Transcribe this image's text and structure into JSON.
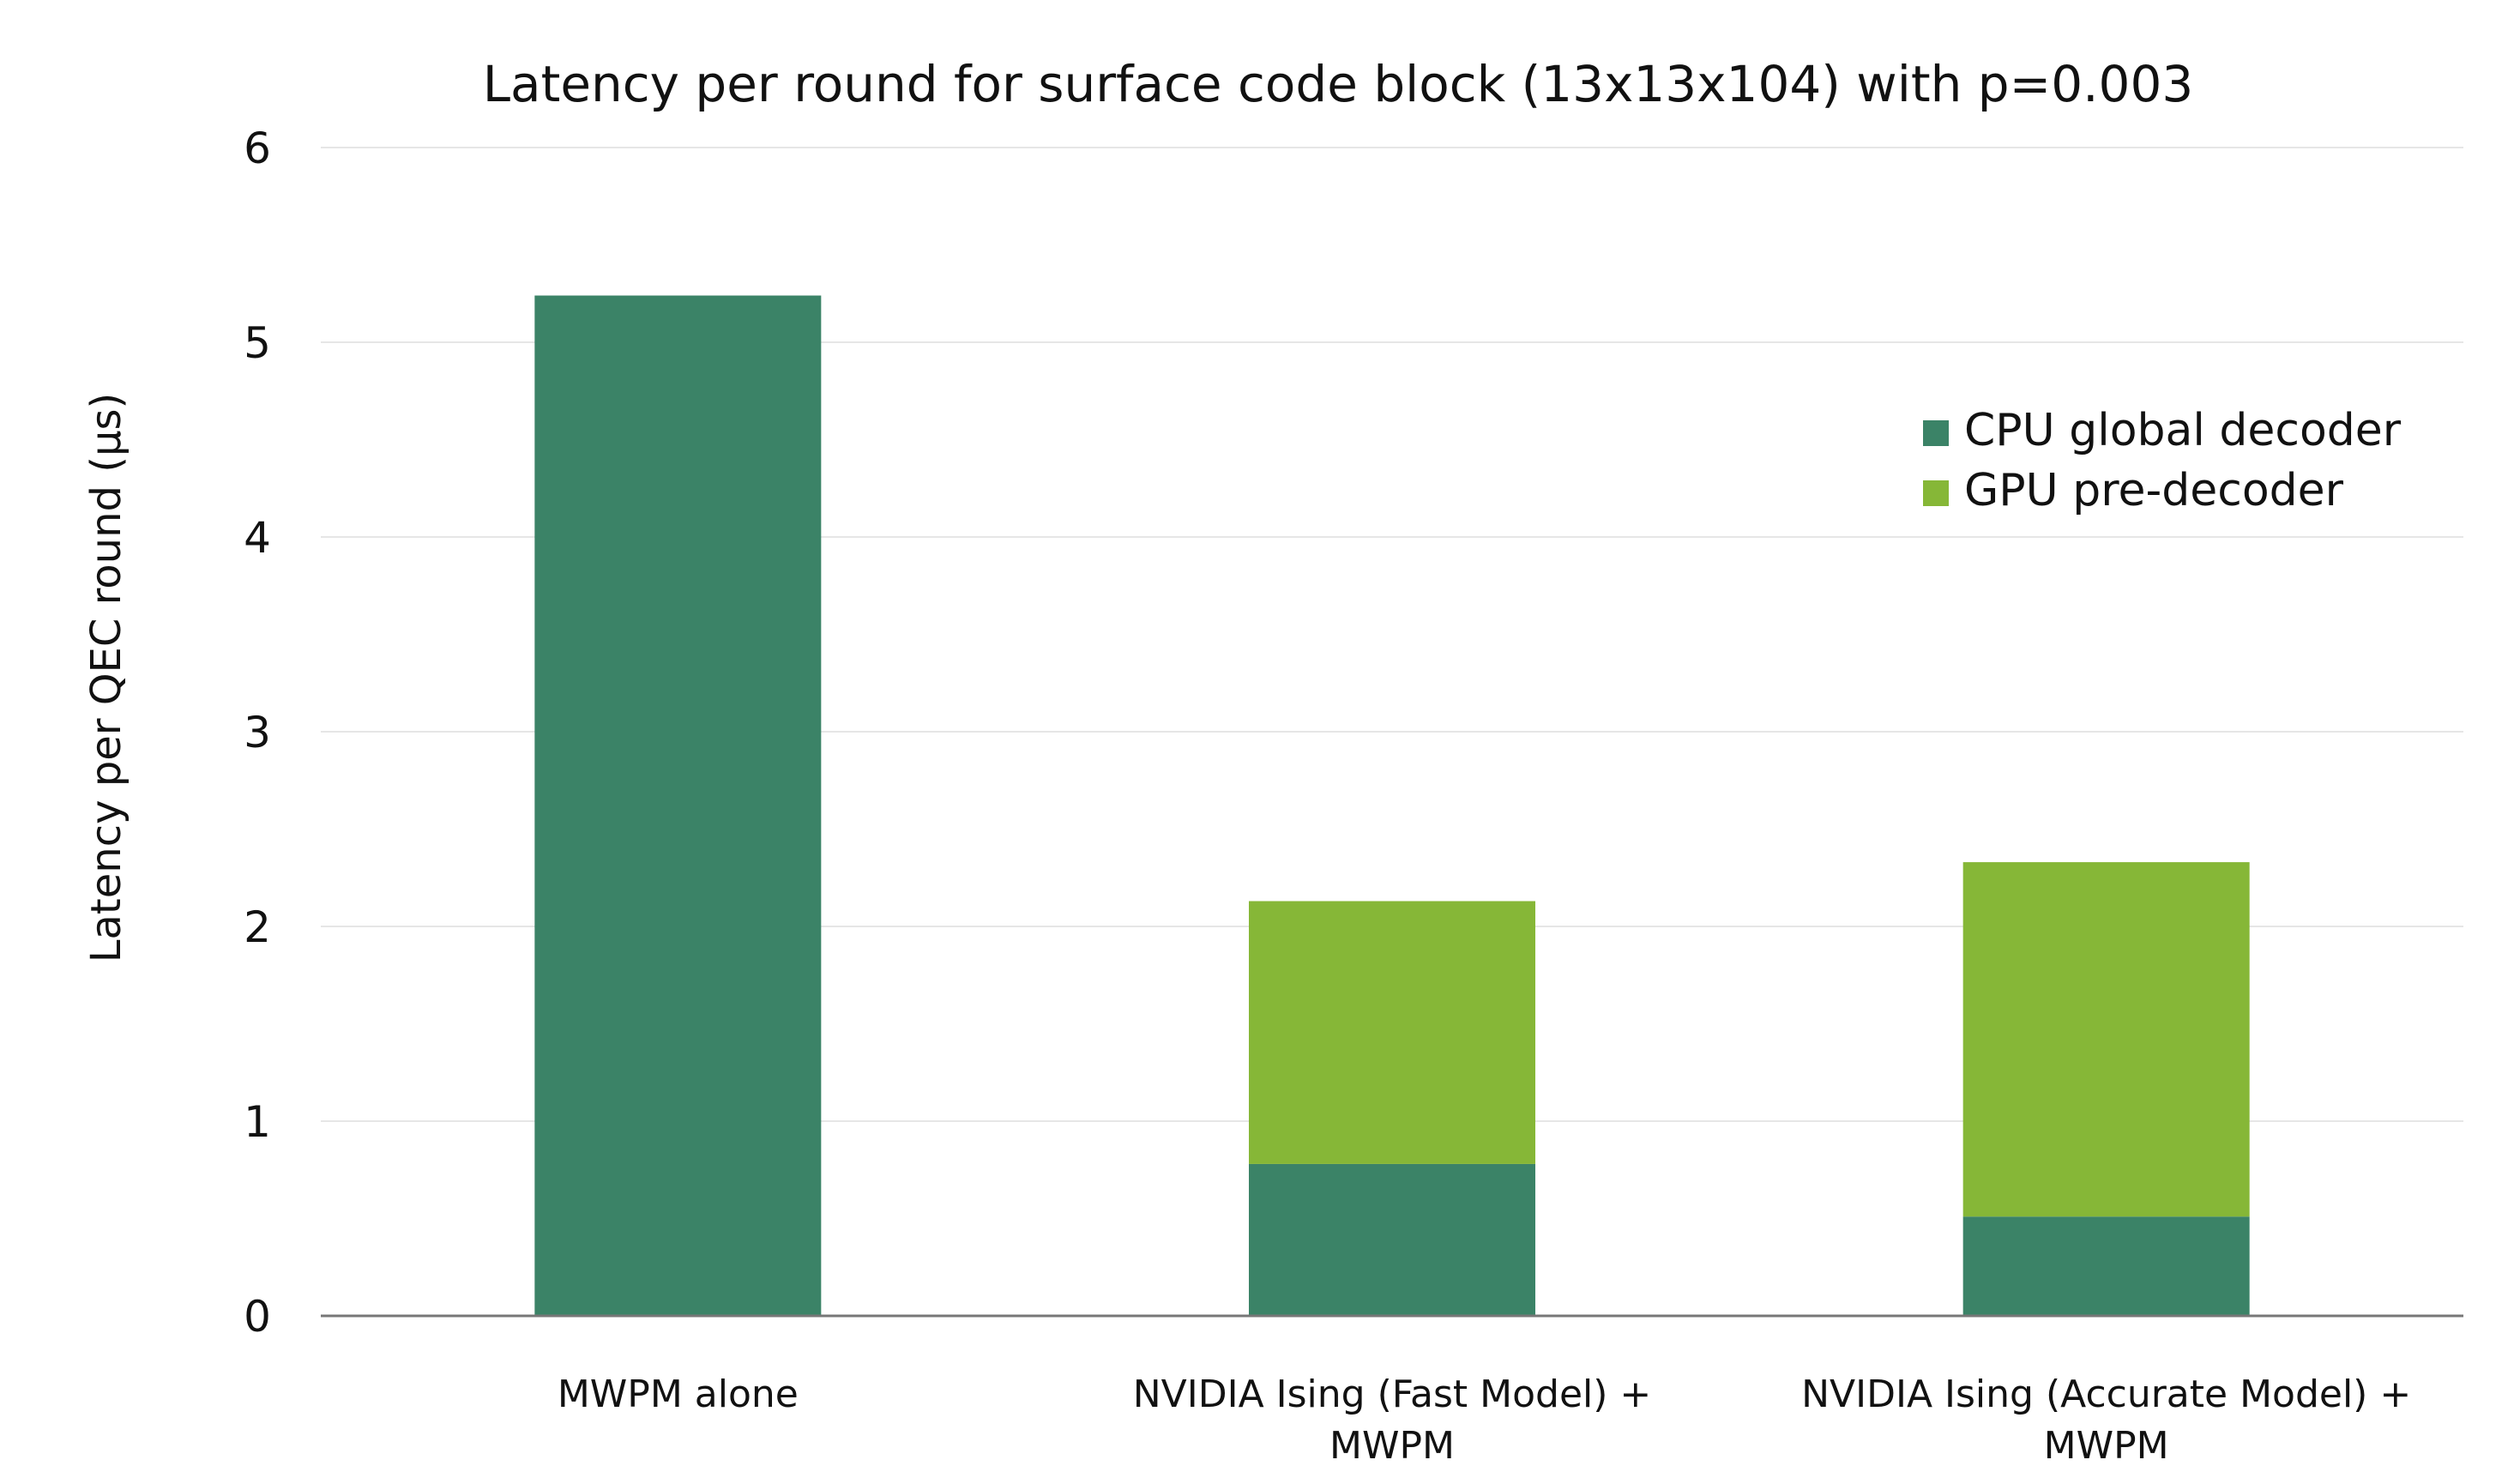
{
  "chart_data": {
    "type": "bar",
    "stacked": true,
    "title": "Latency per round for surface code block (13x13x104) with p=0.003",
    "xlabel": "",
    "ylabel": "Latency per QEC round (µs)",
    "ylim": [
      0,
      6
    ],
    "yticks": [
      "0",
      "1",
      "2",
      "3",
      "4",
      "5",
      "6"
    ],
    "grid": true,
    "legend_position": "right",
    "categories": [
      [
        "MWPM alone"
      ],
      [
        "NVIDIA Ising (Fast Model) +",
        "MWPM"
      ],
      [
        "NVIDIA Ising (Accurate Model) +",
        "MWPM"
      ]
    ],
    "series": [
      {
        "name": "CPU global decoder",
        "color": "#3b8367",
        "values": [
          5.24,
          0.78,
          0.51
        ]
      },
      {
        "name": "GPU pre-decoder",
        "color": "#86b737",
        "values": [
          0,
          1.35,
          1.82
        ]
      }
    ]
  }
}
